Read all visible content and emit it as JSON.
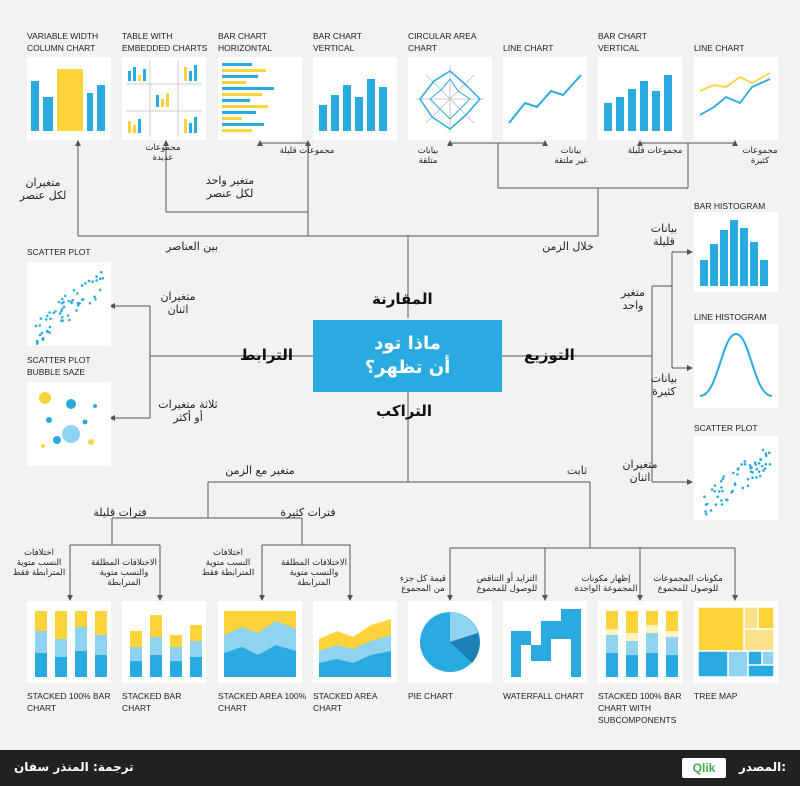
{
  "center_question": "ماذا تود\nأن تظهر؟",
  "categories": {
    "comparison": "المقارنة",
    "distribution": "التوزيع",
    "relationship": "الترابط",
    "composition": "التراكب"
  },
  "comparison": {
    "among_items": "بين العناصر",
    "over_time": "خلال الزمن",
    "two_vars_per_item": "متغيران\nلكل عنصر",
    "one_var_per_item": "متغير واحد\nلكل عنصر",
    "many_categories": "مجموعات\nعديدة",
    "few_categories_1": "مجموعات قليلة",
    "cyclical_data": "بيانات\nمتلقة",
    "non_cyclical_data": "بيانات\nغير ملتقة",
    "few_categories_2": "مجموعات قليلة",
    "many_categories_2": "مجموعات\nكثيرة",
    "charts": [
      {
        "name": "VARIABLE WIDTH COLUMN CHART"
      },
      {
        "name": "TABLE WITH EMBEDDED CHARTS"
      },
      {
        "name": "BAR CHART HORIZONTAL"
      },
      {
        "name": "BAR CHART VERTICAL"
      },
      {
        "name": "CIRCULAR AREA CHART"
      },
      {
        "name": "LINE CHART"
      },
      {
        "name": "BAR CHART VERTICAL"
      },
      {
        "name": "LINE CHART"
      }
    ]
  },
  "distribution": {
    "single_variable": "متغير\nواحد",
    "few_data_points": "بيانات\nقليلة",
    "many_data_points": "بيانات\nكثيرة",
    "two_variables": "متغيران\nاثنان",
    "charts": [
      {
        "name": "BAR HISTOGRAM"
      },
      {
        "name": "LINE HISTOGRAM"
      },
      {
        "name": "SCATTER PLOT"
      }
    ]
  },
  "relationship": {
    "two_variables": "متغيران\nاثنان",
    "three_variables": "ثلاثة متغيرات\nأو أكثر",
    "charts": [
      {
        "name": "SCATTER PLOT"
      },
      {
        "name": "SCATTER PLOT BUBBLE SAZE"
      }
    ]
  },
  "composition": {
    "changing_over_time": "متغير مع الزمن",
    "static": "ثابت",
    "few_periods": "فترات قليلة",
    "many_periods": "فترات كثيرة",
    "relative_only_1": "اختلافات\nالنسب متوية\nالمترابطة فقط",
    "relative_absolute_1": "الاختلافات المطلقة\nوالنسب متوية\nالمترابطة",
    "relative_only_2": "اختلافات\nالنسب متوية\nالمترابطة فقط",
    "relative_absolute_2": "الاختلافات المطلقة\nوالنسب متوية\nالمترابطة",
    "share_of_total": "قيمة كل جزء\nمن المجموع",
    "accumulation": "التزايد أو التناقص\nللوصول للمجموع",
    "components_of_components": "إظهار مكونات\nالمجموعة الواحدة",
    "components_of_total": "مكونات المجموعات\nللوصول للمجموع",
    "charts": [
      {
        "name": "STACKED 100% BAR CHART"
      },
      {
        "name": "STACKED BAR CHART"
      },
      {
        "name": "STACKED AREA 100% CHART"
      },
      {
        "name": "STACKED AREA CHART"
      },
      {
        "name": "PIE CHART"
      },
      {
        "name": "WATERFALL CHART"
      },
      {
        "name": "STACKED 100% BAR CHART WITH SUBCOMPONENTS"
      },
      {
        "name": "TREE MAP"
      }
    ]
  },
  "footer": {
    "translation": "ترجمة: المنذر سفان",
    "source_label": "المصدر:",
    "logo_a": "Qlik",
    "logo_b": "Q"
  },
  "colors": {
    "blue": "#29abe2",
    "light_blue": "#8fd3f0",
    "yellow": "#fcd33b",
    "line": "#555555"
  }
}
